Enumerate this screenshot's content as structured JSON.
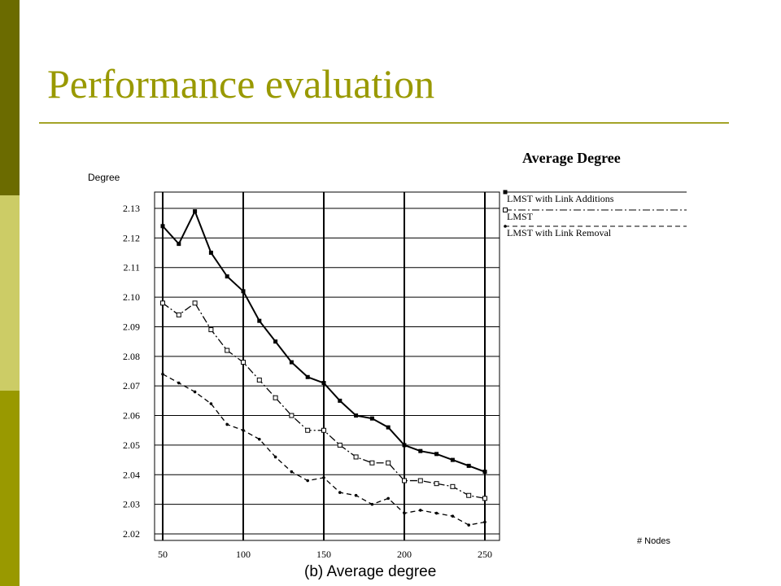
{
  "slide": {
    "title": "Performance evaluation",
    "colors": {
      "title": "#999900",
      "rule": "#a4a428",
      "bar_dark": "#6b6b00",
      "bar_light": "#cccc66",
      "bar_mid": "#999900"
    }
  },
  "chart_data": {
    "type": "line",
    "title": "Average Degree",
    "subtitle": "(b) Average degree",
    "ylabel": "Degree",
    "xlabel": "# Nodes",
    "x": [
      50,
      60,
      70,
      80,
      90,
      100,
      110,
      120,
      130,
      140,
      150,
      160,
      170,
      180,
      190,
      200,
      210,
      220,
      230,
      240,
      250
    ],
    "xlim": [
      50,
      250
    ],
    "ylim": [
      2.02,
      2.13
    ],
    "xticks": [
      "50",
      "100",
      "150",
      "200",
      "250"
    ],
    "yticks": [
      "2.02",
      "2.03",
      "2.04",
      "2.05",
      "2.06",
      "2.07",
      "2.08",
      "2.09",
      "2.10",
      "2.11",
      "2.12",
      "2.13"
    ],
    "grid": true,
    "legend_position": "top-right",
    "series": [
      {
        "name": "LMST with Link Additions",
        "marker": "filled-square",
        "line": "solid",
        "values": [
          2.124,
          2.118,
          2.129,
          2.115,
          2.107,
          2.102,
          2.092,
          2.085,
          2.078,
          2.073,
          2.071,
          2.065,
          2.06,
          2.059,
          2.056,
          2.05,
          2.048,
          2.047,
          2.045,
          2.043,
          2.041
        ]
      },
      {
        "name": "LMST",
        "marker": "open-square",
        "line": "dash-dot",
        "values": [
          2.098,
          2.094,
          2.098,
          2.089,
          2.082,
          2.078,
          2.072,
          2.066,
          2.06,
          2.055,
          2.055,
          2.05,
          2.046,
          2.044,
          2.044,
          2.038,
          2.038,
          2.037,
          2.036,
          2.033,
          2.032
        ]
      },
      {
        "name": "LMST with Link Removal",
        "marker": "dot",
        "line": "dashed",
        "values": [
          2.074,
          2.071,
          2.068,
          2.064,
          2.057,
          2.055,
          2.052,
          2.046,
          2.041,
          2.038,
          2.039,
          2.034,
          2.033,
          2.03,
          2.032,
          2.027,
          2.028,
          2.027,
          2.026,
          2.023,
          2.024
        ]
      }
    ]
  }
}
